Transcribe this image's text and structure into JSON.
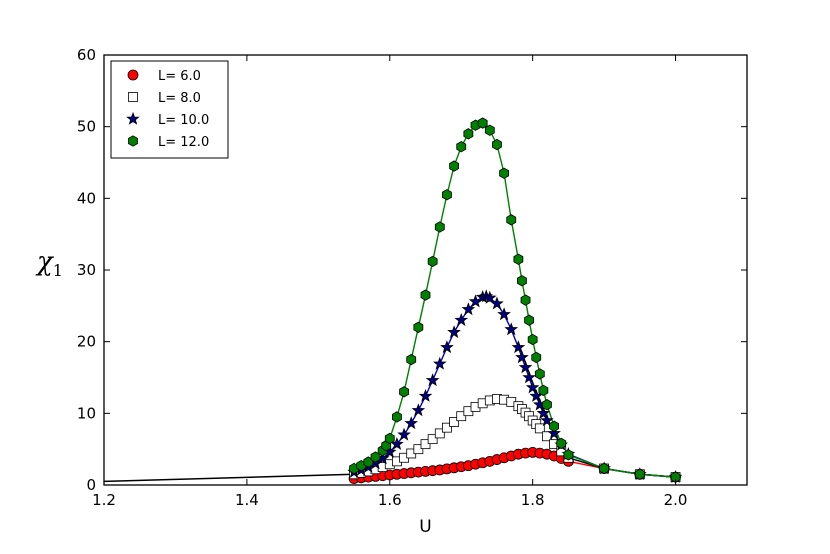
{
  "chart_data": {
    "type": "line",
    "xlabel": "U",
    "ylabel": "χ",
    "ylabel_subscript": "1",
    "xlim": [
      1.2,
      2.1
    ],
    "ylim": [
      0,
      60
    ],
    "xticks": [
      "1.2",
      "1.4",
      "1.6",
      "1.8",
      "2.0"
    ],
    "yticks": [
      "0",
      "10",
      "20",
      "30",
      "40",
      "50",
      "60"
    ],
    "grid": false,
    "legend_position": "top-left",
    "baseline": {
      "color": "#000000",
      "x": [
        1.2,
        1.55
      ],
      "y": [
        0.5,
        1.5
      ]
    },
    "series": [
      {
        "name": "L= 6.0",
        "marker": "circle",
        "color": "#ff0000",
        "line_color": "#ff0000",
        "x": [
          1.55,
          1.56,
          1.57,
          1.58,
          1.59,
          1.6,
          1.61,
          1.62,
          1.63,
          1.64,
          1.65,
          1.66,
          1.67,
          1.68,
          1.69,
          1.7,
          1.71,
          1.72,
          1.73,
          1.74,
          1.75,
          1.76,
          1.77,
          1.78,
          1.79,
          1.8,
          1.81,
          1.82,
          1.83,
          1.84,
          1.85,
          1.9,
          1.95,
          2.0
        ],
        "y": [
          0.9,
          1.0,
          1.1,
          1.2,
          1.3,
          1.4,
          1.5,
          1.6,
          1.7,
          1.8,
          1.9,
          2.0,
          2.1,
          2.25,
          2.4,
          2.55,
          2.7,
          2.9,
          3.1,
          3.3,
          3.55,
          3.8,
          4.05,
          4.3,
          4.45,
          4.55,
          4.45,
          4.3,
          4.05,
          3.7,
          3.3,
          2.3,
          1.5,
          1.1
        ]
      },
      {
        "name": "L= 8.0",
        "marker": "square",
        "color": "#ffffff",
        "line_color": "#000000",
        "x": [
          1.55,
          1.56,
          1.57,
          1.58,
          1.59,
          1.6,
          1.61,
          1.62,
          1.63,
          1.64,
          1.65,
          1.66,
          1.67,
          1.68,
          1.69,
          1.7,
          1.71,
          1.72,
          1.73,
          1.74,
          1.75,
          1.76,
          1.77,
          1.78,
          1.785,
          1.79,
          1.795,
          1.8,
          1.805,
          1.81,
          1.82,
          1.83,
          1.84,
          1.85,
          1.9,
          1.95,
          2.0
        ],
        "y": [
          1.5,
          1.7,
          1.9,
          2.2,
          2.5,
          2.9,
          3.3,
          3.8,
          4.4,
          5.0,
          5.7,
          6.4,
          7.2,
          8.0,
          8.8,
          9.6,
          10.3,
          10.9,
          11.4,
          11.8,
          12.0,
          11.9,
          11.6,
          11.0,
          10.6,
          10.1,
          9.6,
          9.0,
          8.5,
          7.9,
          6.8,
          5.7,
          4.7,
          3.8,
          2.3,
          1.5,
          1.1
        ]
      },
      {
        "name": "L= 10.0",
        "marker": "star",
        "color": "#000080",
        "line_color": "#0000cc",
        "x": [
          1.55,
          1.56,
          1.57,
          1.58,
          1.59,
          1.6,
          1.61,
          1.62,
          1.63,
          1.64,
          1.65,
          1.66,
          1.67,
          1.68,
          1.69,
          1.7,
          1.71,
          1.72,
          1.73,
          1.735,
          1.74,
          1.75,
          1.76,
          1.77,
          1.78,
          1.785,
          1.79,
          1.795,
          1.8,
          1.805,
          1.81,
          1.815,
          1.82,
          1.83,
          1.84,
          1.85,
          1.9,
          1.95,
          2.0
        ],
        "y": [
          1.8,
          2.1,
          2.5,
          3.0,
          3.7,
          4.6,
          5.7,
          7.0,
          8.6,
          10.4,
          12.4,
          14.6,
          16.9,
          19.2,
          21.3,
          23.0,
          24.5,
          25.6,
          26.2,
          26.3,
          26.1,
          25.3,
          23.8,
          21.7,
          19.2,
          17.8,
          16.4,
          15.0,
          13.6,
          12.4,
          11.2,
          10.0,
          9.0,
          7.2,
          5.6,
          4.3,
          2.3,
          1.5,
          1.1
        ]
      },
      {
        "name": "L= 12.0",
        "marker": "hexagon",
        "color": "#008000",
        "line_color": "#008000",
        "x": [
          1.55,
          1.56,
          1.57,
          1.58,
          1.59,
          1.595,
          1.6,
          1.61,
          1.62,
          1.63,
          1.64,
          1.65,
          1.66,
          1.67,
          1.68,
          1.69,
          1.7,
          1.71,
          1.72,
          1.73,
          1.74,
          1.75,
          1.76,
          1.77,
          1.78,
          1.785,
          1.79,
          1.795,
          1.8,
          1.805,
          1.81,
          1.815,
          1.82,
          1.83,
          1.84,
          1.85,
          1.9,
          1.95,
          2.0
        ],
        "y": [
          2.3,
          2.7,
          3.2,
          3.9,
          4.8,
          5.5,
          6.5,
          9.5,
          13.0,
          17.5,
          22.0,
          26.5,
          31.2,
          36.0,
          40.5,
          44.5,
          47.2,
          49.0,
          50.2,
          50.5,
          49.5,
          47.5,
          43.5,
          37.0,
          31.5,
          28.5,
          25.8,
          23.0,
          20.3,
          17.8,
          15.5,
          13.2,
          11.2,
          8.2,
          5.8,
          4.2,
          2.3,
          1.5,
          1.1
        ]
      }
    ]
  }
}
